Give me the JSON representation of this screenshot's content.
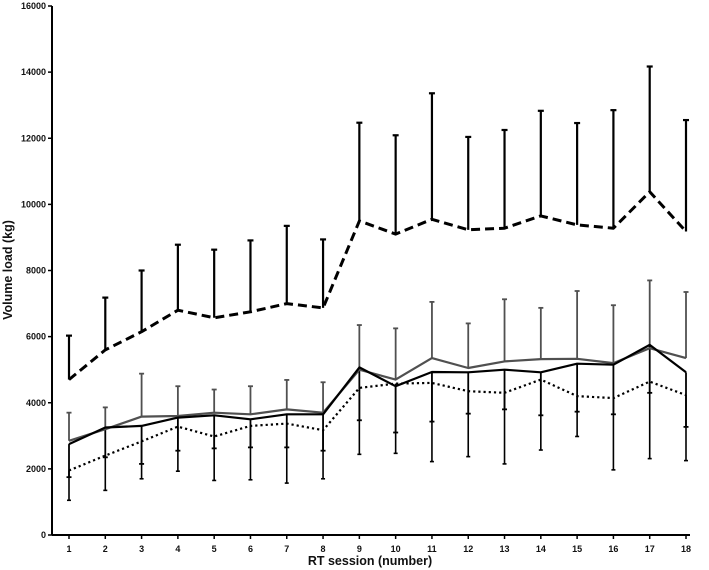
{
  "chart_data": {
    "type": "line",
    "title": "",
    "xlabel": "RT session (number)",
    "ylabel": "Volume load (kg)",
    "x": [
      1,
      2,
      3,
      4,
      5,
      6,
      7,
      8,
      9,
      10,
      11,
      12,
      13,
      14,
      15,
      16,
      17,
      18
    ],
    "xlim": [
      1,
      18
    ],
    "ylim": [
      0,
      16000
    ],
    "yticks": [
      0,
      2000,
      4000,
      6000,
      8000,
      10000,
      12000,
      14000,
      16000
    ],
    "grid": false,
    "legend": "none",
    "series": [
      {
        "style": "dashed",
        "color": "#000000",
        "error_direction": "up",
        "values": [
          4700,
          5600,
          6150,
          6800,
          6570,
          6750,
          7000,
          6870,
          9500,
          9100,
          9550,
          9230,
          9280,
          9650,
          9380,
          9280,
          10380,
          9180
        ],
        "errors": [
          1330,
          1580,
          1850,
          1980,
          2060,
          2160,
          2350,
          2070,
          2970,
          2990,
          3810,
          2810,
          2970,
          3180,
          3080,
          3570,
          3790,
          3370
        ]
      },
      {
        "style": "solid-gray",
        "color": "#505050",
        "error_direction": "up",
        "values": [
          2850,
          3200,
          3580,
          3600,
          3700,
          3650,
          3800,
          3700,
          5000,
          4700,
          5350,
          5050,
          5250,
          5320,
          5330,
          5200,
          5650,
          5350
        ],
        "errors": [
          850,
          660,
          1300,
          900,
          700,
          850,
          890,
          920,
          1350,
          1550,
          1700,
          1350,
          1880,
          1550,
          2050,
          1750,
          2050,
          2000
        ]
      },
      {
        "style": "solid-black",
        "color": "#000000",
        "error_direction": "down",
        "values": [
          2750,
          3250,
          3300,
          3550,
          3620,
          3500,
          3650,
          3650,
          5070,
          4500,
          4930,
          4920,
          5000,
          4920,
          5180,
          5150,
          5750,
          4920
        ],
        "errors": [
          1000,
          900,
          1150,
          1000,
          1000,
          850,
          1000,
          1100,
          1600,
          1400,
          1500,
          1250,
          1200,
          1300,
          1450,
          1500,
          1450,
          1650
        ]
      },
      {
        "style": "dotted",
        "color": "#000000",
        "error_direction": "down",
        "values": [
          1950,
          2400,
          2830,
          3280,
          2980,
          3300,
          3370,
          3170,
          4450,
          4580,
          4600,
          4350,
          4300,
          4700,
          4200,
          4140,
          4640,
          4230
        ],
        "errors": [
          900,
          1050,
          1130,
          1350,
          1330,
          1630,
          1800,
          1470,
          2010,
          2110,
          2380,
          1980,
          2150,
          2130,
          1220,
          2170,
          2330,
          1980
        ]
      }
    ]
  }
}
